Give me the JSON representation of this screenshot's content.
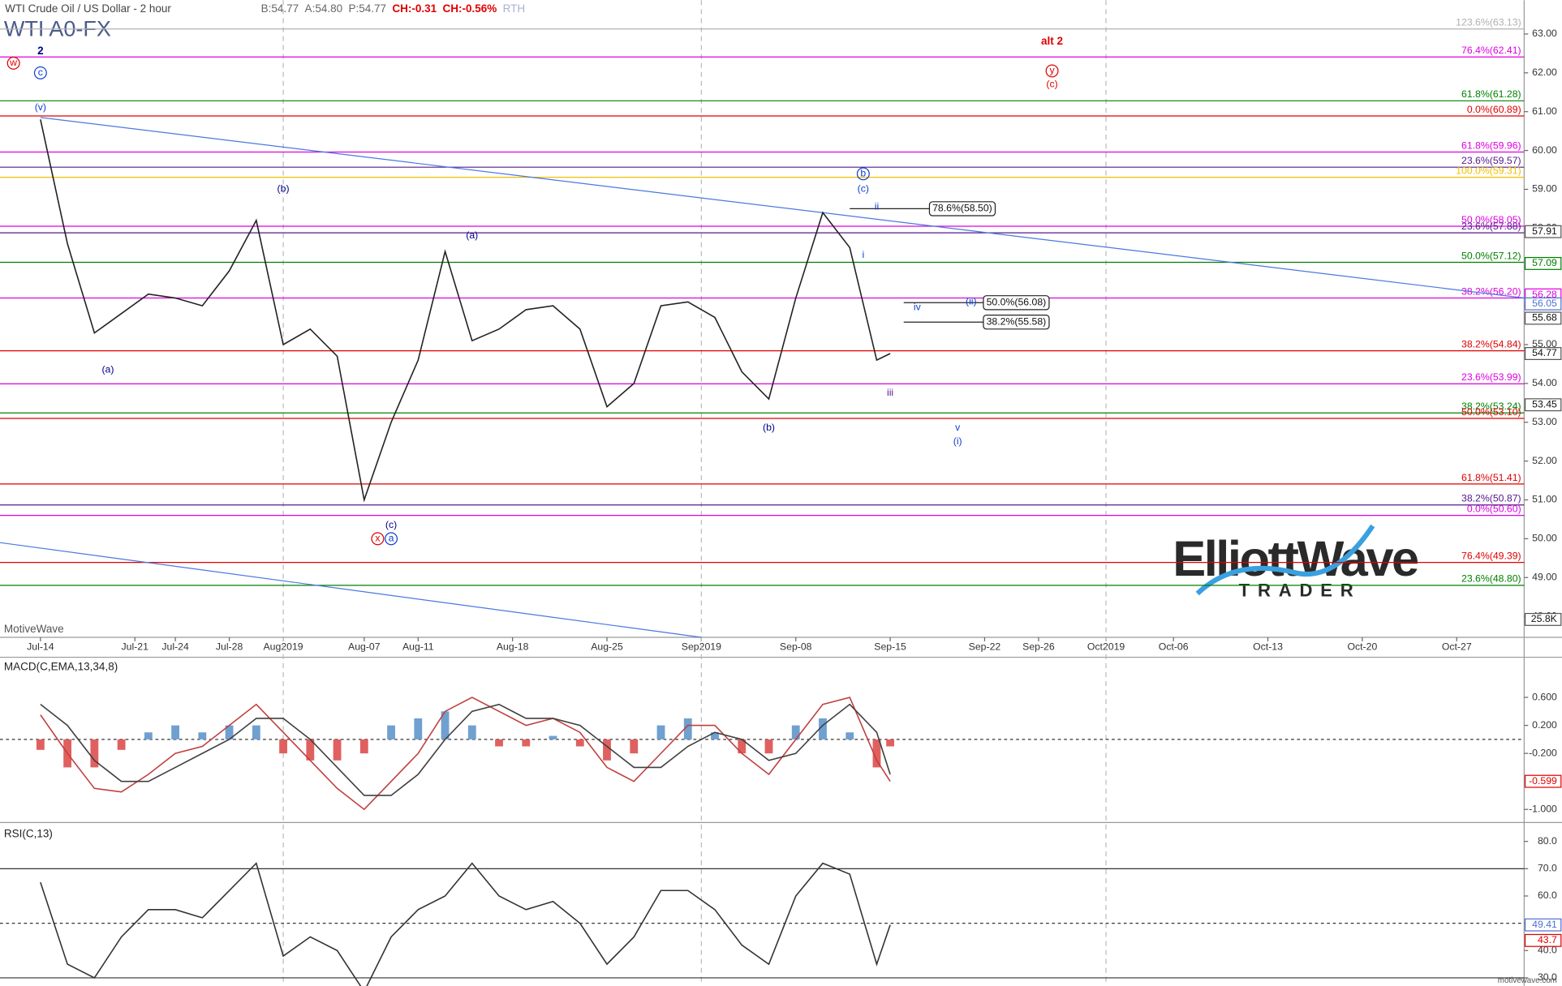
{
  "chart_data": [
    {
      "type": "line",
      "title": "WTI A0-FX",
      "subtitle": "WTI Crude Oil / US Dollar - 2 hour",
      "quote": [
        {
          "text": "B:54.77",
          "color": "#666666"
        },
        {
          "text": "A:54.80",
          "color": "#666666"
        },
        {
          "text": "P:54.77",
          "color": "#666666"
        },
        {
          "text": "CH:-0.31",
          "color": "#e00000"
        },
        {
          "text": "CH:-0.56%",
          "color": "#e00000"
        },
        {
          "text": "RTH",
          "color": "#aab0d0"
        }
      ],
      "xlim": [
        "2019-07-11",
        "2019-11-01"
      ],
      "ylim": [
        47.46,
        63.87
      ],
      "xticks": [
        {
          "value": "2019-07-14",
          "label": "Jul-14"
        },
        {
          "value": "2019-07-21",
          "label": "Jul-21"
        },
        {
          "value": "2019-07-24",
          "label": "Jul-24"
        },
        {
          "value": "2019-07-28",
          "label": "Jul-28"
        },
        {
          "value": "2019-08-01",
          "label": "Aug2019",
          "major": true
        },
        {
          "value": "2019-08-07",
          "label": "Aug-07"
        },
        {
          "value": "2019-08-11",
          "label": "Aug-11"
        },
        {
          "value": "2019-08-18",
          "label": "Aug-18"
        },
        {
          "value": "2019-08-25",
          "label": "Aug-25"
        },
        {
          "value": "2019-09-01",
          "label": "Sep2019",
          "major": true
        },
        {
          "value": "2019-09-08",
          "label": "Sep-08"
        },
        {
          "value": "2019-09-15",
          "label": "Sep-15"
        },
        {
          "value": "2019-09-22",
          "label": "Sep-22"
        },
        {
          "value": "2019-09-26",
          "label": "Sep-26"
        },
        {
          "value": "2019-10-01",
          "label": "Oct2019",
          "major": true
        },
        {
          "value": "2019-10-06",
          "label": "Oct-06"
        },
        {
          "value": "2019-10-13",
          "label": "Oct-13"
        },
        {
          "value": "2019-10-20",
          "label": "Oct-20"
        },
        {
          "value": "2019-10-27",
          "label": "Oct-27"
        }
      ],
      "yticks": [
        {
          "value": 48,
          "label": "48.00"
        },
        {
          "value": 49,
          "label": "49.00"
        },
        {
          "value": 50,
          "label": "50.00"
        },
        {
          "value": 51,
          "label": "51.00"
        },
        {
          "value": 52,
          "label": "52.00"
        },
        {
          "value": 53,
          "label": "53.00"
        },
        {
          "value": 54,
          "label": "54.00"
        },
        {
          "value": 55,
          "label": "55.00"
        },
        {
          "value": 56,
          "label": "56.00"
        },
        {
          "value": 57,
          "label": "57.00"
        },
        {
          "value": 58,
          "label": "58.00"
        },
        {
          "value": 59,
          "label": "59.00"
        },
        {
          "value": 60,
          "label": "60.00"
        },
        {
          "value": 61,
          "label": "61.00"
        },
        {
          "value": 62,
          "label": "62.00"
        },
        {
          "value": 63,
          "label": "63.00"
        }
      ],
      "x": [
        "2019-07-14",
        "2019-07-16",
        "2019-07-18",
        "2019-07-20",
        "2019-07-22",
        "2019-07-24",
        "2019-07-26",
        "2019-07-28",
        "2019-07-30",
        "2019-08-01",
        "2019-08-03",
        "2019-08-05",
        "2019-08-07",
        "2019-08-09",
        "2019-08-11",
        "2019-08-13",
        "2019-08-15",
        "2019-08-17",
        "2019-08-19",
        "2019-08-21",
        "2019-08-23",
        "2019-08-25",
        "2019-08-27",
        "2019-08-29",
        "2019-08-31",
        "2019-09-02",
        "2019-09-04",
        "2019-09-06",
        "2019-09-08",
        "2019-09-10",
        "2019-09-12",
        "2019-09-14",
        "2019-09-15"
      ],
      "series": [
        {
          "color": "#222222",
          "values": [
            60.8,
            57.6,
            55.3,
            55.8,
            56.3,
            56.2,
            56.0,
            56.9,
            58.2,
            55.0,
            55.4,
            54.7,
            51.0,
            53.0,
            54.6,
            57.4,
            55.1,
            55.4,
            55.9,
            56.0,
            55.4,
            53.4,
            54.0,
            56.0,
            56.1,
            55.7,
            54.3,
            53.6,
            56.2,
            58.4,
            57.5,
            54.6,
            54.77
          ]
        }
      ],
      "trendlines": [
        {
          "color": "#4a78e0",
          "x": [
            "2019-07-14",
            "2019-11-01"
          ],
          "y": [
            60.85,
            56.2
          ]
        },
        {
          "color": "#4a78e0",
          "x": [
            "2019-07-11",
            "2019-09-01"
          ],
          "y": [
            49.9,
            47.46
          ]
        }
      ],
      "levels": [
        {
          "value": 63.13,
          "label": "123.6%(63.13)",
          "color": "#b0b0b0"
        },
        {
          "value": 62.41,
          "label": "76.4%(62.41)",
          "color": "#e000e0"
        },
        {
          "value": 61.28,
          "label": "61.8%(61.28)",
          "color": "#008000"
        },
        {
          "value": 60.89,
          "label": "0.0%(60.89)",
          "color": "#e00000"
        },
        {
          "value": 59.96,
          "label": "61.8%(59.96)",
          "color": "#e000e0"
        },
        {
          "value": 59.57,
          "label": "23.6%(59.57)",
          "color": "#551a8b"
        },
        {
          "value": 59.31,
          "label": "100.0%(59.31)",
          "color": "#f0c000"
        },
        {
          "value": 58.05,
          "label": "50.0%(58.05)",
          "color": "#e000e0"
        },
        {
          "value": 57.88,
          "label": "23.6%(57.88)",
          "color": "#551a8b"
        },
        {
          "value": 57.12,
          "label": "50.0%(57.12)",
          "color": "#008000"
        },
        {
          "value": 56.2,
          "label": "38.2%(56.20)",
          "color": "#e000e0"
        },
        {
          "value": 54.84,
          "label": "38.2%(54.84)",
          "color": "#e00000"
        },
        {
          "value": 53.99,
          "label": "23.6%(53.99)",
          "color": "#e000e0"
        },
        {
          "value": 53.24,
          "label": "38.2%(53.24)",
          "color": "#008000"
        },
        {
          "value": 53.1,
          "label": "50.0%(53.10)",
          "color": "#e00000"
        },
        {
          "value": 51.41,
          "label": "61.8%(51.41)",
          "color": "#e00000"
        },
        {
          "value": 50.87,
          "label": "38.2%(50.87)",
          "color": "#551a8b"
        },
        {
          "value": 50.6,
          "label": "0.0%(50.60)",
          "color": "#e000e0"
        },
        {
          "value": 49.39,
          "label": "76.4%(49.39)",
          "color": "#e00000"
        },
        {
          "value": 48.8,
          "label": "23.6%(48.80)",
          "color": "#008000"
        }
      ],
      "boxed_levels": [
        {
          "value": 58.5,
          "label": "78.6%(58.50)",
          "from": "2019-09-12"
        },
        {
          "value": 56.08,
          "label": "50.0%(56.08)",
          "from": "2019-09-16"
        },
        {
          "value": 55.58,
          "label": "38.2%(55.58)",
          "from": "2019-09-16"
        }
      ],
      "price_tags": [
        {
          "value": 57.91,
          "color": "#555555"
        },
        {
          "value": 57.09,
          "color": "#008000"
        },
        {
          "value": 56.28,
          "color": "#e000e0"
        },
        {
          "value": 56.05,
          "color": "#5070d0"
        },
        {
          "value": 55.68,
          "color": "#555555"
        },
        {
          "value": 54.77,
          "color": "#555555"
        },
        {
          "value": 53.45,
          "color": "#555555"
        }
      ],
      "volume_tag": "25.8K",
      "wave_labels": [
        {
          "text": "2",
          "x": "2019-07-14",
          "y": 62.55,
          "color": "#00008b",
          "bold": true
        },
        {
          "text": "w",
          "x": "2019-07-12",
          "y": 62.25,
          "color": "#e00000",
          "circle": true
        },
        {
          "text": "c",
          "x": "2019-07-14",
          "y": 62.0,
          "color": "#1040d0",
          "circle": true
        },
        {
          "text": "(v)",
          "x": "2019-07-14",
          "y": 61.1,
          "color": "#1040d0"
        },
        {
          "text": "(a)",
          "x": "2019-07-19",
          "y": 54.35,
          "color": "#00008b"
        },
        {
          "text": "(b)",
          "x": "2019-08-01",
          "y": 59.0,
          "color": "#00008b"
        },
        {
          "text": "(c)",
          "x": "2019-08-09",
          "y": 50.35,
          "color": "#00008b"
        },
        {
          "text": "x",
          "x": "2019-08-08",
          "y": 50.0,
          "color": "#e00000",
          "circle": true
        },
        {
          "text": "a",
          "x": "2019-08-09",
          "y": 50.0,
          "color": "#1040d0",
          "circle": true
        },
        {
          "text": "(a)",
          "x": "2019-08-15",
          "y": 57.8,
          "color": "#00008b"
        },
        {
          "text": "(b)",
          "x": "2019-09-06",
          "y": 52.85,
          "color": "#00008b"
        },
        {
          "text": "b",
          "x": "2019-09-13",
          "y": 59.4,
          "color": "#1040d0",
          "circle": true
        },
        {
          "text": "(c)",
          "x": "2019-09-13",
          "y": 59.0,
          "color": "#1040d0"
        },
        {
          "text": "ii",
          "x": "2019-09-14",
          "y": 58.55,
          "color": "#1040d0"
        },
        {
          "text": "i",
          "x": "2019-09-13",
          "y": 57.3,
          "color": "#1040d0"
        },
        {
          "text": "iii",
          "x": "2019-09-15",
          "y": 53.75,
          "color": "#551a8b"
        },
        {
          "text": "iv",
          "x": "2019-09-17",
          "y": 55.95,
          "color": "#1040d0"
        },
        {
          "text": "(ii)",
          "x": "2019-09-21",
          "y": 56.1,
          "color": "#1040d0"
        },
        {
          "text": "v",
          "x": "2019-09-20",
          "y": 52.85,
          "color": "#1040d0"
        },
        {
          "text": "(i)",
          "x": "2019-09-20",
          "y": 52.5,
          "color": "#1040d0"
        },
        {
          "text": "alt 2",
          "x": "2019-09-27",
          "y": 62.8,
          "color": "#e00000",
          "bold": true
        },
        {
          "text": "y",
          "x": "2019-09-27",
          "y": 62.05,
          "color": "#e00000",
          "circle": true
        },
        {
          "text": "(c)",
          "x": "2019-09-27",
          "y": 61.7,
          "color": "#e00000"
        }
      ]
    },
    {
      "type": "macd",
      "title": "MACD(C,EMA,13,34,8)",
      "xlim": [
        "2019-07-11",
        "2019-11-01"
      ],
      "ylim": [
        -1.187,
        1.173
      ],
      "yticks": [
        {
          "value": 0.6,
          "label": "0.600"
        },
        {
          "value": 0.2,
          "label": "0.200"
        },
        {
          "value": -0.2,
          "label": "-0.200"
        },
        {
          "value": -1.0,
          "label": "-1.000"
        }
      ],
      "zero_line": 0,
      "x": [
        "2019-07-14",
        "2019-07-16",
        "2019-07-18",
        "2019-07-20",
        "2019-07-22",
        "2019-07-24",
        "2019-07-26",
        "2019-07-28",
        "2019-07-30",
        "2019-08-01",
        "2019-08-03",
        "2019-08-05",
        "2019-08-07",
        "2019-08-09",
        "2019-08-11",
        "2019-08-13",
        "2019-08-15",
        "2019-08-17",
        "2019-08-19",
        "2019-08-21",
        "2019-08-23",
        "2019-08-25",
        "2019-08-27",
        "2019-08-29",
        "2019-08-31",
        "2019-09-02",
        "2019-09-04",
        "2019-09-06",
        "2019-09-08",
        "2019-09-10",
        "2019-09-12",
        "2019-09-14",
        "2019-09-15"
      ],
      "series": [
        {
          "color": "#c04040",
          "values": [
            0.35,
            -0.2,
            -0.7,
            -0.75,
            -0.5,
            -0.2,
            -0.1,
            0.2,
            0.5,
            0.1,
            -0.3,
            -0.7,
            -1.0,
            -0.6,
            -0.2,
            0.4,
            0.6,
            0.4,
            0.2,
            0.3,
            0.1,
            -0.4,
            -0.6,
            -0.2,
            0.2,
            0.2,
            -0.2,
            -0.5,
            0.0,
            0.5,
            0.6,
            -0.3,
            -0.599
          ]
        },
        {
          "color": "#404040",
          "values": [
            0.5,
            0.2,
            -0.3,
            -0.6,
            -0.6,
            -0.4,
            -0.2,
            0.0,
            0.3,
            0.3,
            0.0,
            -0.4,
            -0.8,
            -0.8,
            -0.5,
            0.0,
            0.4,
            0.5,
            0.3,
            0.3,
            0.2,
            -0.1,
            -0.4,
            -0.4,
            -0.1,
            0.1,
            0.0,
            -0.3,
            -0.2,
            0.2,
            0.5,
            0.1,
            -0.5
          ]
        }
      ],
      "histogram": {
        "up_color": "#6fa0d0",
        "down_color": "#e06060",
        "values": [
          -0.15,
          -0.4,
          -0.4,
          -0.15,
          0.1,
          0.2,
          0.1,
          0.2,
          0.2,
          -0.2,
          -0.3,
          -0.3,
          -0.2,
          0.2,
          0.3,
          0.4,
          0.2,
          -0.1,
          -0.1,
          0.05,
          -0.1,
          -0.3,
          -0.2,
          0.2,
          0.3,
          0.1,
          -0.2,
          -0.2,
          0.2,
          0.3,
          0.1,
          -0.4,
          -0.1
        ]
      },
      "price_tags": [
        {
          "value": -0.599,
          "color": "#e00000"
        }
      ]
    },
    {
      "type": "rsi",
      "title": "RSI(C,13)",
      "xlim": [
        "2019-07-11",
        "2019-11-01"
      ],
      "ylim": [
        27.1,
        86.2
      ],
      "yticks": [
        {
          "value": 30,
          "label": "30.0"
        },
        {
          "value": 40,
          "label": "40.0"
        },
        {
          "value": 50,
          "label": "50.0"
        },
        {
          "value": 60,
          "label": "60.0"
        },
        {
          "value": 70,
          "label": "70.0"
        },
        {
          "value": 80,
          "label": "80.0"
        }
      ],
      "bands": [
        30,
        70
      ],
      "midline": 50,
      "x": [
        "2019-07-14",
        "2019-07-16",
        "2019-07-18",
        "2019-07-20",
        "2019-07-22",
        "2019-07-24",
        "2019-07-26",
        "2019-07-28",
        "2019-07-30",
        "2019-08-01",
        "2019-08-03",
        "2019-08-05",
        "2019-08-07",
        "2019-08-09",
        "2019-08-11",
        "2019-08-13",
        "2019-08-15",
        "2019-08-17",
        "2019-08-19",
        "2019-08-21",
        "2019-08-23",
        "2019-08-25",
        "2019-08-27",
        "2019-08-29",
        "2019-08-31",
        "2019-09-02",
        "2019-09-04",
        "2019-09-06",
        "2019-09-08",
        "2019-09-10",
        "2019-09-12",
        "2019-09-14",
        "2019-09-15"
      ],
      "series": [
        {
          "color": "#333333",
          "values": [
            65,
            35,
            30,
            45,
            55,
            55,
            52,
            62,
            72,
            38,
            45,
            40,
            25,
            45,
            55,
            60,
            72,
            60,
            55,
            58,
            50,
            35,
            45,
            62,
            62,
            55,
            42,
            35,
            60,
            72,
            68,
            35,
            49.41
          ]
        }
      ],
      "price_tags": [
        {
          "value": 49.41,
          "color": "#5070d0"
        },
        {
          "value": 43.7,
          "color": "#e00000"
        }
      ]
    }
  ],
  "logo": {
    "main": "ElliottWave",
    "sub": "TRADER"
  },
  "watermark": "MotiveWave",
  "footer": "motivewave.com"
}
